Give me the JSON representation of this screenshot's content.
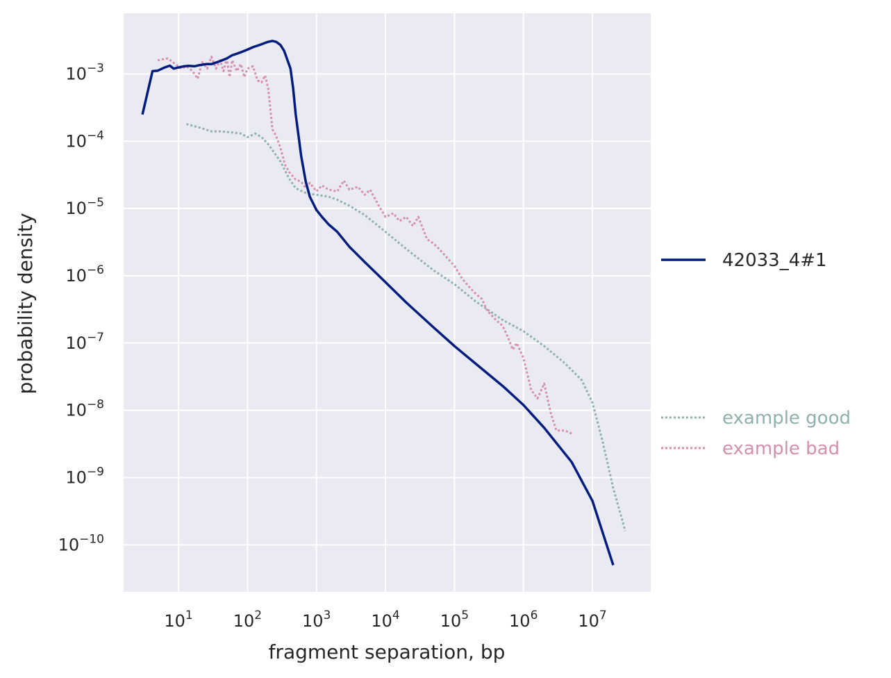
{
  "chart_data": {
    "type": "line",
    "title": "",
    "xlabel": "fragment separation, bp",
    "ylabel": "probability density",
    "x_scale": "log",
    "y_scale": "log",
    "xlim": [
      1.6,
      70000000
    ],
    "ylim": [
      2e-11,
      0.008
    ],
    "grid": true,
    "x_ticks": [
      {
        "base": "10",
        "exp": "1",
        "value": 10
      },
      {
        "base": "10",
        "exp": "2",
        "value": 100
      },
      {
        "base": "10",
        "exp": "3",
        "value": 1000
      },
      {
        "base": "10",
        "exp": "4",
        "value": 10000
      },
      {
        "base": "10",
        "exp": "5",
        "value": 100000
      },
      {
        "base": "10",
        "exp": "6",
        "value": 1000000
      },
      {
        "base": "10",
        "exp": "7",
        "value": 10000000
      }
    ],
    "y_ticks": [
      {
        "base": "10",
        "exp": "−3",
        "value": 0.001
      },
      {
        "base": "10",
        "exp": "−4",
        "value": 0.0001
      },
      {
        "base": "10",
        "exp": "−5",
        "value": 1e-05
      },
      {
        "base": "10",
        "exp": "−6",
        "value": 1e-06
      },
      {
        "base": "10",
        "exp": "−7",
        "value": 1e-07
      },
      {
        "base": "10",
        "exp": "−8",
        "value": 1e-08
      },
      {
        "base": "10",
        "exp": "−9",
        "value": 1e-09
      },
      {
        "base": "10",
        "exp": "−10",
        "value": 1e-10
      }
    ],
    "legend_placement": "right",
    "series": [
      {
        "name": "42033_4#1",
        "color": "#001c7f",
        "style": "solid",
        "x": [
          3,
          4.2,
          5,
          6.3,
          7.5,
          8.5,
          10,
          12,
          14,
          17,
          20,
          25,
          30,
          40,
          50,
          60,
          70,
          80,
          100,
          120,
          150,
          180,
          200,
          230,
          260,
          300,
          340,
          380,
          420,
          460,
          500,
          550,
          600,
          700,
          800,
          1000,
          1200,
          1500,
          2000,
          3000,
          5000,
          10000,
          20000,
          50000,
          100000,
          200000,
          500000,
          1000000,
          2000000,
          5000000,
          10000000,
          20000000
        ],
        "y": [
          0.00025,
          0.0011,
          0.00112,
          0.00125,
          0.00133,
          0.0012,
          0.00125,
          0.0013,
          0.00132,
          0.0013,
          0.00135,
          0.0014,
          0.0014,
          0.00155,
          0.0017,
          0.0019,
          0.002,
          0.0021,
          0.0023,
          0.0025,
          0.0027,
          0.0029,
          0.003,
          0.0031,
          0.003,
          0.0027,
          0.0022,
          0.0016,
          0.0012,
          0.0006,
          0.00025,
          0.00012,
          6e-05,
          2.5e-05,
          1.5e-05,
          9.5e-06,
          7.5e-06,
          5.8e-06,
          4.5e-06,
          2.7e-06,
          1.6e-06,
          8e-07,
          4e-07,
          1.7e-07,
          9e-08,
          5e-08,
          2.3e-08,
          1.2e-08,
          5.5e-09,
          1.7e-09,
          4.5e-10,
          5e-11
        ]
      },
      {
        "name": "example good",
        "color": "#8fb0ad",
        "style": "dotted",
        "x": [
          13,
          20,
          30,
          40,
          60,
          80,
          100,
          130,
          160,
          200,
          300,
          400,
          500,
          700,
          1000,
          1500,
          2000,
          3000,
          5000,
          10000,
          20000,
          50000,
          100000,
          200000,
          500000,
          1000000,
          2000000,
          4000000,
          7000000,
          10000000,
          14000000,
          20000000,
          30000000
        ],
        "y": [
          0.00018,
          0.00016,
          0.00014,
          0.00014,
          0.000135,
          0.00013,
          0.000115,
          0.00013,
          0.000115,
          9e-05,
          5e-05,
          2.8e-05,
          2e-05,
          1.7e-05,
          1.6e-05,
          1.5e-05,
          1.35e-05,
          1.1e-05,
          8e-06,
          4.5e-06,
          2.5e-06,
          1.2e-06,
          7.5e-07,
          4.2e-07,
          2.2e-07,
          1.5e-07,
          9e-08,
          5e-08,
          2.8e-08,
          1.3e-08,
          3.5e-09,
          7e-10,
          1.6e-10
        ]
      },
      {
        "name": "example bad",
        "color": "#d48fac",
        "style": "dotted",
        "x": [
          5,
          7,
          9,
          11,
          13,
          16,
          19,
          22,
          26,
          30,
          35,
          40,
          45,
          50,
          55,
          60,
          70,
          80,
          90,
          100,
          120,
          140,
          160,
          180,
          200,
          230,
          260,
          300,
          350,
          400,
          500,
          600,
          700,
          800,
          1000,
          1200,
          1500,
          2000,
          2500,
          3000,
          4000,
          5000,
          6000,
          8000,
          10000,
          13000,
          16000,
          20000,
          25000,
          30000,
          40000,
          50000,
          60000,
          80000,
          100000,
          130000,
          160000,
          200000,
          250000,
          300000,
          400000,
          500000,
          600000,
          700000,
          800000,
          1000000,
          1300000,
          1600000,
          2000000,
          2500000,
          3000000,
          4000000,
          5000000
        ],
        "y": [
          0.0016,
          0.0017,
          0.0014,
          0.0012,
          0.0013,
          0.0011,
          0.00085,
          0.0015,
          0.0012,
          0.0018,
          0.0012,
          0.0016,
          0.0011,
          0.0017,
          0.0009,
          0.0016,
          0.0011,
          0.0014,
          0.0009,
          0.0012,
          0.0013,
          0.0008,
          0.00075,
          0.00095,
          0.0006,
          0.00015,
          0.00012,
          8e-05,
          4.5e-05,
          3.5e-05,
          2.7e-05,
          2.5e-05,
          2e-05,
          2.4e-05,
          1.8e-05,
          2.2e-05,
          1.9e-05,
          1.8e-05,
          2.6e-05,
          1.9e-05,
          2.1e-05,
          1.6e-05,
          1.9e-05,
          1.1e-05,
          7.5e-06,
          8.5e-06,
          6.5e-06,
          7.5e-06,
          5.5e-06,
          7.5e-06,
          3.5e-06,
          3e-06,
          2.5e-06,
          1.8e-06,
          1.4e-06,
          9e-07,
          7e-07,
          5.5e-07,
          4.5e-07,
          3e-07,
          2.2e-07,
          1.8e-07,
          1.2e-07,
          8e-08,
          1e-07,
          6e-08,
          2e-08,
          1.5e-08,
          2.5e-08,
          9e-09,
          5e-09,
          5e-09,
          4.5e-09
        ]
      }
    ]
  }
}
